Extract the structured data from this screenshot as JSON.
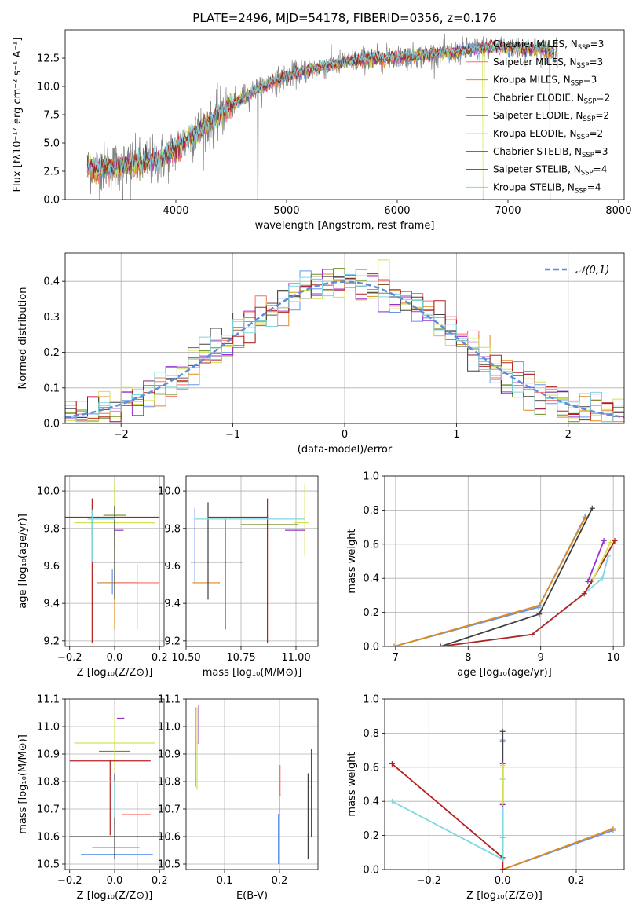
{
  "figure_title": "PLATE=2496, MJD=54178, FIBERID=0356, z=0.176",
  "chart_data": [
    {
      "id": "spectrum",
      "type": "line",
      "title": "PLATE=2496, MJD=54178, FIBERID=0356, z=0.176",
      "xlabel": "wavelength [Angstrom, rest frame]",
      "ylabel": "Flux [fλ10⁻¹⁷ erg cm⁻² s⁻¹ A⁻¹]",
      "xlim": [
        3000,
        8050
      ],
      "ylim": [
        0,
        15
      ],
      "xticks": [
        "4000",
        "5000",
        "6000",
        "7000",
        "8000"
      ],
      "yticks": [
        "0.0",
        "2.5",
        "5.0",
        "7.5",
        "10.0",
        "12.5"
      ],
      "observed_envelope": {
        "x": [
          3200,
          3400,
          3600,
          3800,
          3950,
          4100,
          4300,
          4500,
          4700,
          4900,
          5100,
          5300,
          5500,
          5700,
          5900,
          6100,
          6300,
          6500,
          6700,
          6900,
          7100,
          7300,
          7450
        ],
        "y": [
          2.7,
          2.9,
          3.1,
          3.4,
          4.0,
          5.3,
          6.7,
          8.3,
          9.6,
          10.5,
          11.2,
          11.7,
          12.1,
          12.4,
          12.5,
          12.6,
          12.8,
          13.0,
          13.3,
          13.5,
          13.4,
          13.2,
          13.0
        ]
      },
      "legend": [
        {
          "label": "Chabrier MILES, N",
          "sub": "SSP",
          "suffix": "=3",
          "color": "#6495ed"
        },
        {
          "label": "Salpeter MILES, N",
          "sub": "SSP",
          "suffix": "=3",
          "color": "#ff6a6a"
        },
        {
          "label": "Kroupa MILES, N",
          "sub": "SSP",
          "suffix": "=3",
          "color": "#e08a1e"
        },
        {
          "label": "Chabrier ELODIE, N",
          "sub": "SSP",
          "suffix": "=2",
          "color": "#6b8e23"
        },
        {
          "label": "Salpeter ELODIE, N",
          "sub": "SSP",
          "suffix": "=2",
          "color": "#9932cc"
        },
        {
          "label": "Kroupa ELODIE, N",
          "sub": "SSP",
          "suffix": "=2",
          "color": "#d4e157"
        },
        {
          "label": "Chabrier STELIB, N",
          "sub": "SSP",
          "suffix": "=3",
          "color": "#404040"
        },
        {
          "label": "Salpeter STELIB, N",
          "sub": "SSP",
          "suffix": "=4",
          "color": "#b22222"
        },
        {
          "label": "Kroupa STELIB, N",
          "sub": "SSP",
          "suffix": "=4",
          "color": "#7fd8e0"
        }
      ]
    },
    {
      "id": "residuals",
      "type": "line",
      "xlabel": "(data-model)/error",
      "ylabel": "Normed distribution",
      "xlim": [
        -2.5,
        2.5
      ],
      "ylim": [
        0,
        0.48
      ],
      "xticks": [
        "−2",
        "−1",
        "0",
        "1",
        "2"
      ],
      "yticks": [
        "0.0",
        "0.1",
        "0.2",
        "0.3",
        "0.4"
      ],
      "legend_label": "𝒩(0,1)",
      "normal_color": "#5b8bd9",
      "hist_colors": [
        "#6495ed",
        "#ff6a6a",
        "#e08a1e",
        "#6b8e23",
        "#9932cc",
        "#d4e157",
        "#404040",
        "#b22222",
        "#7fd8e0"
      ],
      "bin_width": 0.1
    },
    {
      "id": "age_vs_Z",
      "type": "scatter",
      "xlabel": "Z [log₁₀(Z/Z⊙)]",
      "ylabel": "age  [log₁₀(age/yr)]",
      "xlim": [
        -0.22,
        0.22
      ],
      "ylim": [
        9.17,
        10.08
      ],
      "xticks": [
        "−0.2",
        "0.0",
        "0.2"
      ],
      "yticks": [
        "9.2",
        "9.4",
        "9.6",
        "9.8",
        "10.0"
      ],
      "points": [
        {
          "x": -0.01,
          "y": 9.51,
          "xerr": [
            0.07,
            0.1
          ],
          "yerr": [
            0.06,
            0.07
          ],
          "color": "#6495ed"
        },
        {
          "x": 0.0,
          "y": 9.51,
          "xerr": [
            0.07,
            0.1
          ],
          "yerr": [
            0.25,
            0.1
          ],
          "color": "#e08a1e"
        },
        {
          "x": 0.1,
          "y": 9.51,
          "xerr": [
            0.1,
            0.1
          ],
          "yerr": [
            0.25,
            0.1
          ],
          "color": "#ff6a6a"
        },
        {
          "x": 0.0,
          "y": 9.87,
          "xerr": [
            0.05,
            0.05
          ],
          "yerr": [
            0.18,
            0.18
          ],
          "color": "#6b8e23"
        },
        {
          "x": 0.0,
          "y": 9.83,
          "xerr": [
            0.18,
            0.18
          ],
          "yerr": [
            0.2,
            0.22
          ],
          "color": "#d4e157"
        },
        {
          "x": 0.0,
          "y": 9.79,
          "xerr": [
            0.0,
            0.04
          ],
          "yerr": [
            0.03,
            0.03
          ],
          "color": "#9932cc"
        },
        {
          "x": 0.0,
          "y": 9.62,
          "xerr": [
            0.1,
            0.22
          ],
          "yerr": [
            0.2,
            0.3
          ],
          "color": "#404040"
        },
        {
          "x": -0.1,
          "y": 9.86,
          "xerr": [
            0.12,
            0.3
          ],
          "yerr": [
            0.67,
            0.1
          ],
          "color": "#b22222"
        },
        {
          "x": -0.1,
          "y": 9.85,
          "xerr": [
            0.02,
            0.1
          ],
          "yerr": [
            0.23,
            0.05
          ],
          "color": "#7fd8e0"
        }
      ]
    },
    {
      "id": "age_vs_mass",
      "type": "scatter",
      "xlabel": "mass [log₁₀(M/M⊙)]",
      "ylabel": "",
      "xlim": [
        10.5,
        11.1
      ],
      "ylim": [
        9.17,
        10.08
      ],
      "xticks": [
        "10.50",
        "10.75",
        "11.00"
      ],
      "yticks": [
        "9.2",
        "9.4",
        "9.6",
        "9.8",
        "10.0"
      ],
      "points": [
        {
          "x": 10.54,
          "y": 9.51,
          "xerr": [
            0.0,
            0.0
          ],
          "yerr": [
            0.0,
            0.4
          ],
          "color": "#6495ed"
        },
        {
          "x": 10.65,
          "y": 9.51,
          "xerr": [
            0.12,
            0.0
          ],
          "yerr": [
            0.0,
            0.0
          ],
          "color": "#e08a1e"
        },
        {
          "x": 10.68,
          "y": 9.6,
          "xerr": [
            0.0,
            0.0
          ],
          "yerr": [
            0.34,
            0.25
          ],
          "color": "#ff6a6a"
        },
        {
          "x": 10.88,
          "y": 9.82,
          "xerr": [
            0.13,
            0.13
          ],
          "yerr": [
            0.0,
            0.0
          ],
          "color": "#6b8e23"
        },
        {
          "x": 11.04,
          "y": 9.83,
          "xerr": [
            0.05,
            0.02
          ],
          "yerr": [
            0.18,
            0.21
          ],
          "color": "#d4e157"
        },
        {
          "x": 11.04,
          "y": 9.79,
          "xerr": [
            0.09,
            0.0
          ],
          "yerr": [
            0.0,
            0.0
          ],
          "color": "#9932cc"
        },
        {
          "x": 10.6,
          "y": 9.62,
          "xerr": [
            0.08,
            0.16
          ],
          "yerr": [
            0.2,
            0.32
          ],
          "color": "#404040"
        },
        {
          "x": 10.87,
          "y": 9.86,
          "xerr": [
            0.27,
            0.0
          ],
          "yerr": [
            0.67,
            0.1
          ],
          "color": "#b22222"
        },
        {
          "x": 10.81,
          "y": 9.85,
          "xerr": [
            0.27,
            0.23
          ],
          "yerr": [
            0.0,
            0.0
          ],
          "color": "#7fd8e0"
        }
      ]
    },
    {
      "id": "weight_vs_age",
      "type": "line",
      "xlabel": "age  [log₁₀(age/yr)]",
      "ylabel": "mass weight",
      "xlim": [
        6.85,
        10.15
      ],
      "ylim": [
        0,
        1
      ],
      "xticks": [
        "7",
        "8",
        "9",
        "10"
      ],
      "yticks": [
        "0.0",
        "0.2",
        "0.4",
        "0.6",
        "0.8",
        "1.0"
      ],
      "series": [
        {
          "color": "#6495ed",
          "x": [
            6.98,
            8.97,
            9.61
          ],
          "y": [
            0.0,
            0.23,
            0.76
          ]
        },
        {
          "color": "#e08a1e",
          "x": [
            6.98,
            8.98,
            9.62
          ],
          "y": [
            0.0,
            0.24,
            0.76
          ]
        },
        {
          "color": "#404040",
          "x": [
            7.62,
            8.98,
            9.71
          ],
          "y": [
            0.0,
            0.19,
            0.81
          ]
        },
        {
          "color": "#7fd8e0",
          "x": [
            7.62,
            8.88,
            9.6,
            9.85,
            9.93
          ],
          "y": [
            0.0,
            0.07,
            0.31,
            0.4,
            0.53
          ]
        },
        {
          "color": "#b22222",
          "x": [
            7.62,
            8.88,
            9.6,
            9.7,
            10.02
          ],
          "y": [
            0.0,
            0.07,
            0.31,
            0.38,
            0.62
          ]
        },
        {
          "color": "#9932cc",
          "x": [
            9.65,
            9.87
          ],
          "y": [
            0.38,
            0.62
          ]
        },
        {
          "color": "#d4e157",
          "x": [
            9.72,
            9.96
          ],
          "y": [
            0.39,
            0.61
          ]
        }
      ]
    },
    {
      "id": "mass_vs_Z",
      "type": "scatter",
      "xlabel": "Z [log₁₀(Z/Z⊙)]",
      "ylabel": "mass [log₁₀(M/M⊙)]",
      "xlim": [
        -0.22,
        0.22
      ],
      "ylim": [
        10.48,
        11.1
      ],
      "xticks": [
        "−0.2",
        "0.0",
        "0.2"
      ],
      "yticks": [
        "10.5",
        "10.6",
        "10.7",
        "10.8",
        "10.9",
        "11.0",
        "11.1"
      ],
      "points": [
        {
          "x": 0.0,
          "y": 10.535,
          "xerr": [
            0.15,
            0.17
          ],
          "yerr": [
            0.0,
            0.0
          ],
          "color": "#6495ed"
        },
        {
          "x": 0.02,
          "y": 10.56,
          "xerr": [
            0.12,
            0.09
          ],
          "yerr": [
            0.0,
            0.0
          ],
          "color": "#e08a1e"
        },
        {
          "x": 0.1,
          "y": 10.68,
          "xerr": [
            0.07,
            0.06
          ],
          "yerr": [
            0.2,
            0.12
          ],
          "color": "#ff6a6a"
        },
        {
          "x": 0.0,
          "y": 10.91,
          "xerr": [
            0.07,
            0.07
          ],
          "yerr": [
            0.0,
            0.0
          ],
          "color": "#6b8e23"
        },
        {
          "x": 0.0,
          "y": 10.94,
          "xerr": [
            0.18,
            0.18
          ],
          "yerr": [
            0.1,
            0.1
          ],
          "color": "#d4e157"
        },
        {
          "x": 0.04,
          "y": 11.03,
          "xerr": [
            0.03,
            0.0
          ],
          "yerr": [
            0.0,
            0.0
          ],
          "color": "#9932cc"
        },
        {
          "x": 0.0,
          "y": 10.6,
          "xerr": [
            0.2,
            0.22
          ],
          "yerr": [
            0.08,
            0.23
          ],
          "color": "#404040"
        },
        {
          "x": -0.02,
          "y": 10.875,
          "xerr": [
            0.18,
            0.18
          ],
          "yerr": [
            0.27,
            0.0
          ],
          "color": "#b22222"
        },
        {
          "x": 0.0,
          "y": 10.8,
          "xerr": [
            0.18,
            0.18
          ],
          "yerr": [
            0.13,
            0.0
          ],
          "color": "#7fd8e0"
        }
      ]
    },
    {
      "id": "mass_vs_ebv",
      "type": "scatter",
      "xlabel": "E(B-V)",
      "ylabel": "",
      "xlim": [
        0.03,
        0.27
      ],
      "ylim": [
        10.48,
        11.1
      ],
      "xticks": [
        "0.1",
        "0.2"
      ],
      "yticks": [
        "10.5",
        "10.6",
        "10.7",
        "10.8",
        "10.9",
        "11.0",
        "11.1"
      ],
      "points": [
        {
          "x": 0.198,
          "y": 10.68,
          "xerr": [
            0.0,
            0.0
          ],
          "yerr": [
            0.18,
            0.0
          ],
          "color": "#6495ed"
        },
        {
          "x": 0.2,
          "y": 10.68,
          "xerr": [
            0.0,
            0.0
          ],
          "yerr": [
            0.18,
            0.1
          ],
          "color": "#e08a1e"
        },
        {
          "x": 0.201,
          "y": 10.75,
          "xerr": [
            0.0,
            0.0
          ],
          "yerr": [
            0.0,
            0.11
          ],
          "color": "#ff6a6a"
        },
        {
          "x": 0.047,
          "y": 10.9,
          "xerr": [
            0.0,
            0.0
          ],
          "yerr": [
            0.12,
            0.17
          ],
          "color": "#6b8e23"
        },
        {
          "x": 0.05,
          "y": 10.94,
          "xerr": [
            0.0,
            0.0
          ],
          "yerr": [
            0.17,
            0.13
          ],
          "color": "#d4e157"
        },
        {
          "x": 0.053,
          "y": 10.94,
          "xerr": [
            0.0,
            0.0
          ],
          "yerr": [
            0.0,
            0.14
          ],
          "color": "#9932cc"
        },
        {
          "x": 0.252,
          "y": 10.6,
          "xerr": [
            0.0,
            0.0
          ],
          "yerr": [
            0.08,
            0.23
          ],
          "color": "#404040"
        },
        {
          "x": 0.258,
          "y": 10.78,
          "xerr": [
            0.0,
            0.0
          ],
          "yerr": [
            0.18,
            0.14
          ],
          "color": "#b22222"
        },
        {
          "x": 0.256,
          "y": 10.8,
          "xerr": [
            0.0,
            0.0
          ],
          "yerr": [
            0.0,
            0.0
          ],
          "color": "#7fd8e0"
        }
      ]
    },
    {
      "id": "weight_vs_Z",
      "type": "line",
      "xlabel": "Z [log₁₀(Z/Z⊙)]",
      "ylabel": "mass weight",
      "xlim": [
        -0.32,
        0.33
      ],
      "ylim": [
        0,
        1
      ],
      "xticks": [
        "−0.2",
        "0.0",
        "0.2"
      ],
      "yticks": [
        "0.0",
        "0.2",
        "0.4",
        "0.6",
        "0.8",
        "1.0"
      ],
      "series": [
        {
          "color": "#6495ed",
          "x": [
            0.3,
            0.0,
            0.0
          ],
          "y": [
            0.23,
            0.0,
            0.76
          ]
        },
        {
          "color": "#e08a1e",
          "x": [
            0.3,
            0.0,
            0.0
          ],
          "y": [
            0.24,
            0.0,
            0.75
          ]
        },
        {
          "color": "#404040",
          "x": [
            0.0,
            0.0,
            0.0
          ],
          "y": [
            0.0,
            0.19,
            0.81
          ]
        },
        {
          "color": "#b22222",
          "x": [
            -0.3,
            0.0,
            0.0
          ],
          "y": [
            0.62,
            0.07,
            0.0
          ]
        },
        {
          "color": "#7fd8e0",
          "x": [
            -0.3,
            0.0,
            0.0
          ],
          "y": [
            0.4,
            0.06,
            0.53
          ]
        },
        {
          "color": "#9932cc",
          "x": [
            0.0,
            0.0
          ],
          "y": [
            0.38,
            0.62
          ]
        },
        {
          "color": "#d4e157",
          "x": [
            0.0,
            0.0
          ],
          "y": [
            0.39,
            0.61
          ]
        }
      ]
    }
  ]
}
